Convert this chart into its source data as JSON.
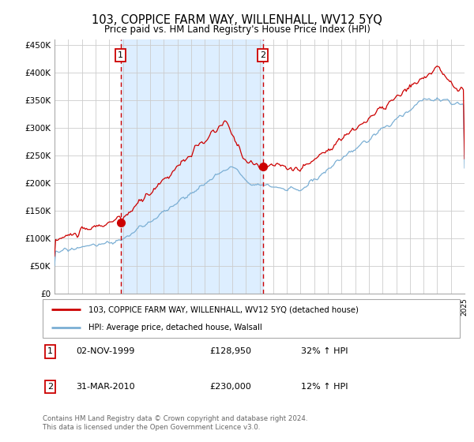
{
  "title": "103, COPPICE FARM WAY, WILLENHALL, WV12 5YQ",
  "subtitle": "Price paid vs. HM Land Registry's House Price Index (HPI)",
  "legend_line1": "103, COPPICE FARM WAY, WILLENHALL, WV12 5YQ (detached house)",
  "legend_line2": "HPI: Average price, detached house, Walsall",
  "table_rows": [
    {
      "num": "1",
      "date": "02-NOV-1999",
      "price": "£128,950",
      "hpi": "32% ↑ HPI"
    },
    {
      "num": "2",
      "date": "31-MAR-2010",
      "price": "£230,000",
      "hpi": "12% ↑ HPI"
    }
  ],
  "footnote": "Contains HM Land Registry data © Crown copyright and database right 2024.\nThis data is licensed under the Open Government Licence v3.0.",
  "ylim": [
    0,
    460000
  ],
  "yticks": [
    0,
    50000,
    100000,
    150000,
    200000,
    250000,
    300000,
    350000,
    400000,
    450000
  ],
  "ylabels": [
    "£0",
    "£50K",
    "£100K",
    "£150K",
    "£200K",
    "£250K",
    "£300K",
    "£350K",
    "£400K",
    "£450K"
  ],
  "red_line_color": "#cc0000",
  "blue_line_color": "#7bafd4",
  "shade_color": "#ddeeff",
  "vline_color": "#cc0000",
  "marker_color": "#cc0000",
  "background_color": "#ffffff",
  "grid_color": "#cccccc",
  "sale1_year": 1999.84,
  "sale2_year": 2010.25,
  "sale1_price": 128950,
  "sale2_price": 230000,
  "xmin": 1995.0,
  "xmax": 2025.0
}
